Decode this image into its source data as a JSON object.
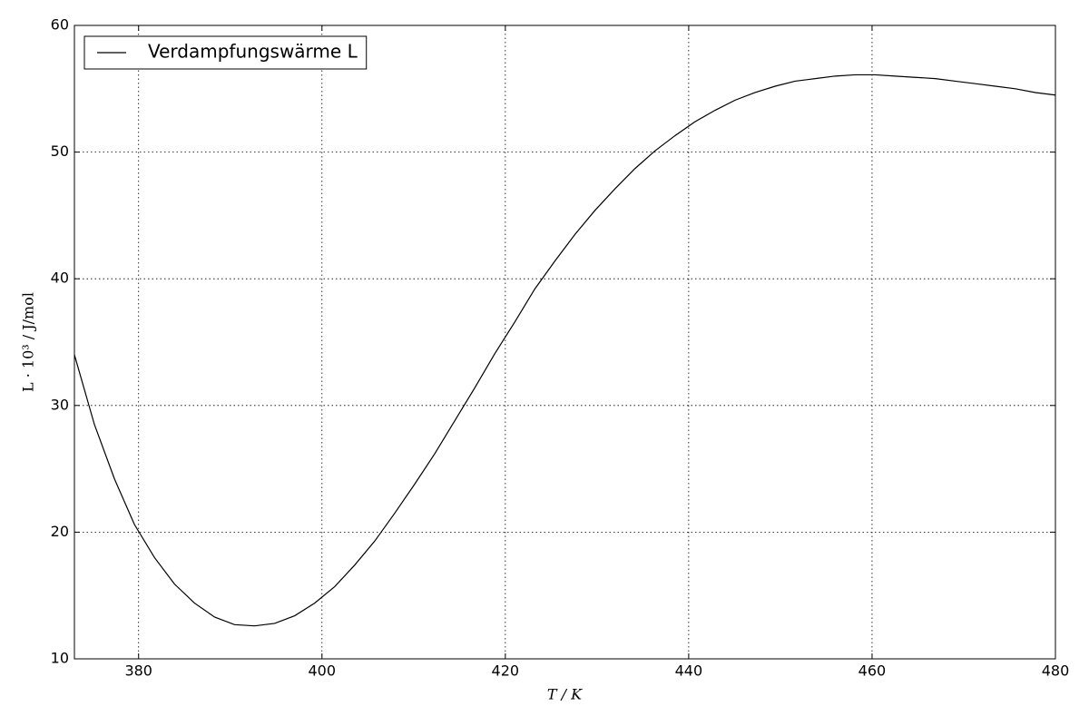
{
  "chart_data": {
    "type": "line",
    "x_label": "T / K",
    "y_label": "L · 10³ / J/mol",
    "x": [
      373,
      375.18,
      377.37,
      379.55,
      381.73,
      383.92,
      386.1,
      388.29,
      390.47,
      392.65,
      394.84,
      397.02,
      399.2,
      401.39,
      403.57,
      405.76,
      407.94,
      410.12,
      412.31,
      414.49,
      416.67,
      418.86,
      421.04,
      423.22,
      425.41,
      427.59,
      429.78,
      431.96,
      434.14,
      436.33,
      438.51,
      440.69,
      442.88,
      445.06,
      447.24,
      449.43,
      451.61,
      453.8,
      455.98,
      458.16,
      460.35,
      462.53,
      464.71,
      466.9,
      469.08,
      471.27,
      473.45,
      475.63,
      477.82,
      480
    ],
    "series": [
      {
        "name": "Verdampfungswärme L",
        "color": "#000000",
        "values": [
          34.0,
          28.5,
          24.2,
          20.6,
          18.0,
          15.9,
          14.4,
          13.3,
          12.7,
          12.6,
          12.8,
          13.4,
          14.4,
          15.7,
          17.4,
          19.3,
          21.5,
          23.8,
          26.2,
          28.8,
          31.4,
          34.1,
          36.6,
          39.2,
          41.4,
          43.5,
          45.4,
          47.1,
          48.7,
          50.1,
          51.3,
          52.4,
          53.3,
          54.1,
          54.7,
          55.2,
          55.6,
          55.8,
          56.0,
          56.1,
          56.1,
          56.0,
          55.9,
          55.8,
          55.6,
          55.4,
          55.2,
          55.0,
          54.7,
          54.5
        ]
      }
    ],
    "xlim": [
      373,
      480
    ],
    "xticks": [
      380,
      400,
      420,
      440,
      460,
      480
    ],
    "ylim": [
      10,
      60
    ],
    "yticks": [
      10,
      20,
      30,
      40,
      50,
      60
    ],
    "grid": true,
    "legend": "upper-left"
  }
}
